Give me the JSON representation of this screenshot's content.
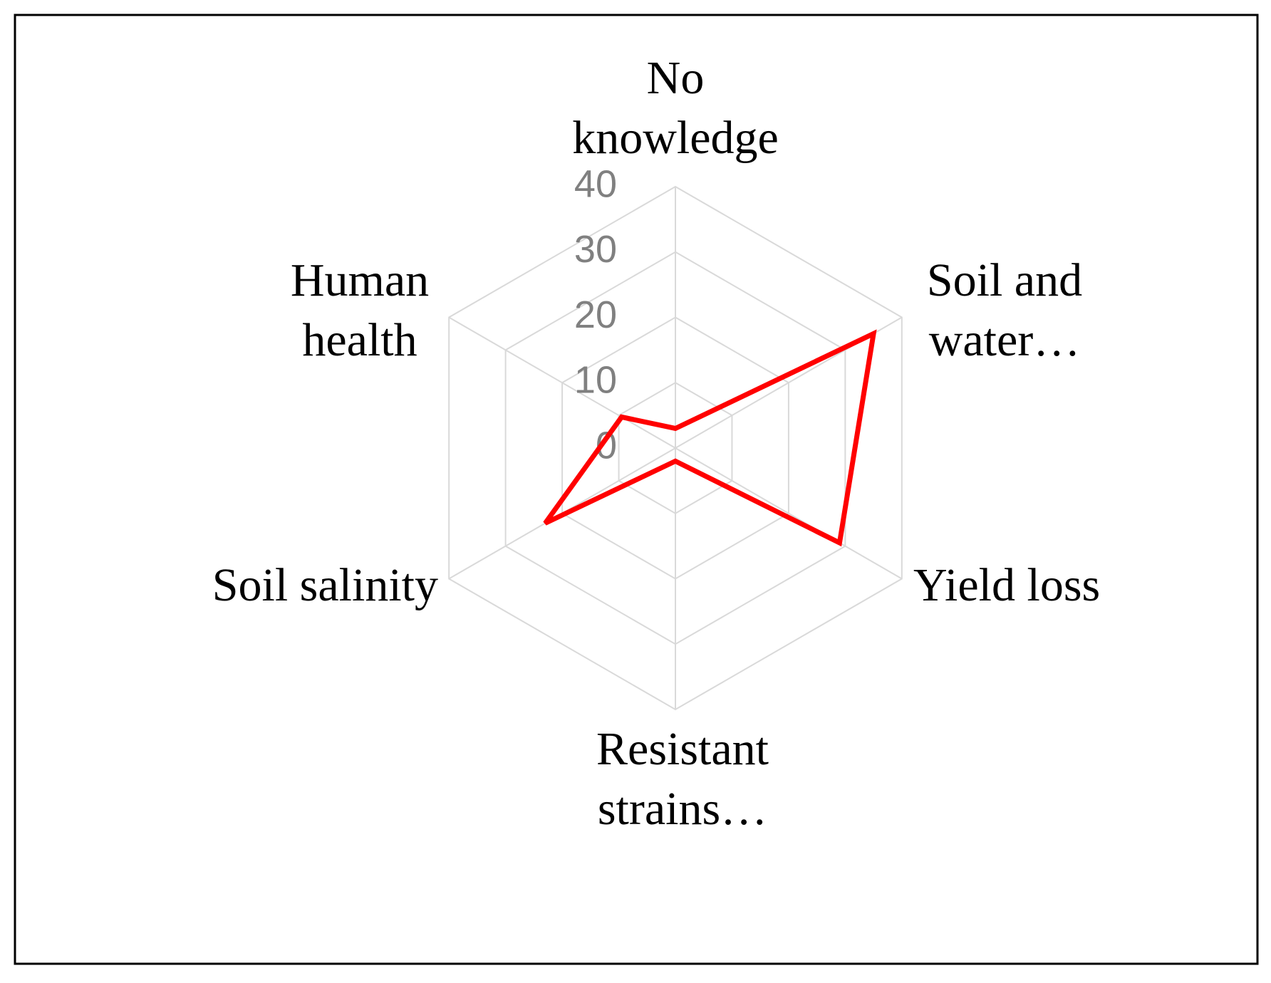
{
  "chart_data": {
    "type": "radar",
    "categories": [
      "No knowledge",
      "Soil and water…",
      "Yield loss",
      "Resistant strains…",
      "Soil salinity",
      "Human health"
    ],
    "series": [
      {
        "color": "#ff0000",
        "values": [
          3,
          35,
          29,
          2,
          23,
          9.5
        ]
      }
    ],
    "rlim": [
      0,
      40
    ],
    "rticks": [
      0,
      10,
      20,
      30,
      40
    ],
    "grid": true
  }
}
